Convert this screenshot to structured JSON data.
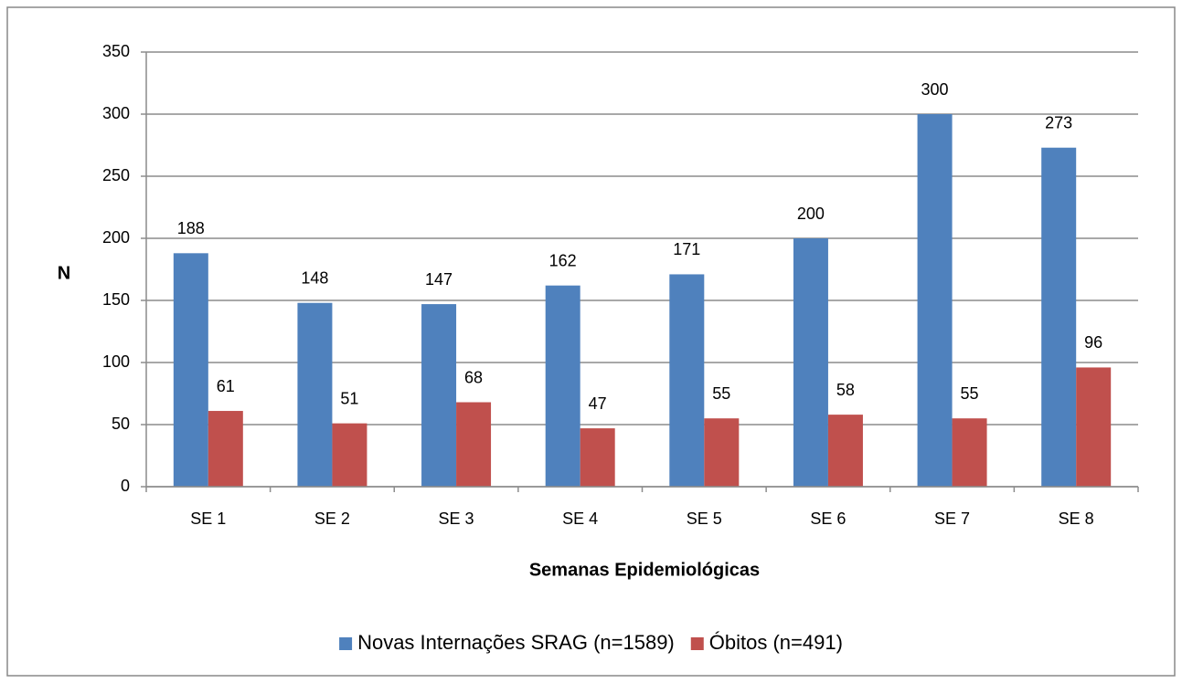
{
  "chart_data": {
    "type": "bar",
    "x_label": "Semanas Epidemiológicas",
    "y_label": "N",
    "categories": [
      "SE 1",
      "SE 2",
      "SE 3",
      "SE 4",
      "SE 5",
      "SE 6",
      "SE 7",
      "SE 8"
    ],
    "series": [
      {
        "name": "Novas Internações SRAG (n=1589)",
        "color": "#4f81bd",
        "values": [
          188,
          148,
          147,
          162,
          171,
          200,
          300,
          273
        ]
      },
      {
        "name": "Óbitos (n=491)",
        "color": "#c0504d",
        "values": [
          61,
          51,
          68,
          47,
          55,
          58,
          55,
          96
        ]
      }
    ],
    "ylim": [
      0,
      350
    ],
    "yticks": [
      0,
      50,
      100,
      150,
      200,
      250,
      300,
      350
    ],
    "grid": true,
    "legend": "bottom"
  }
}
